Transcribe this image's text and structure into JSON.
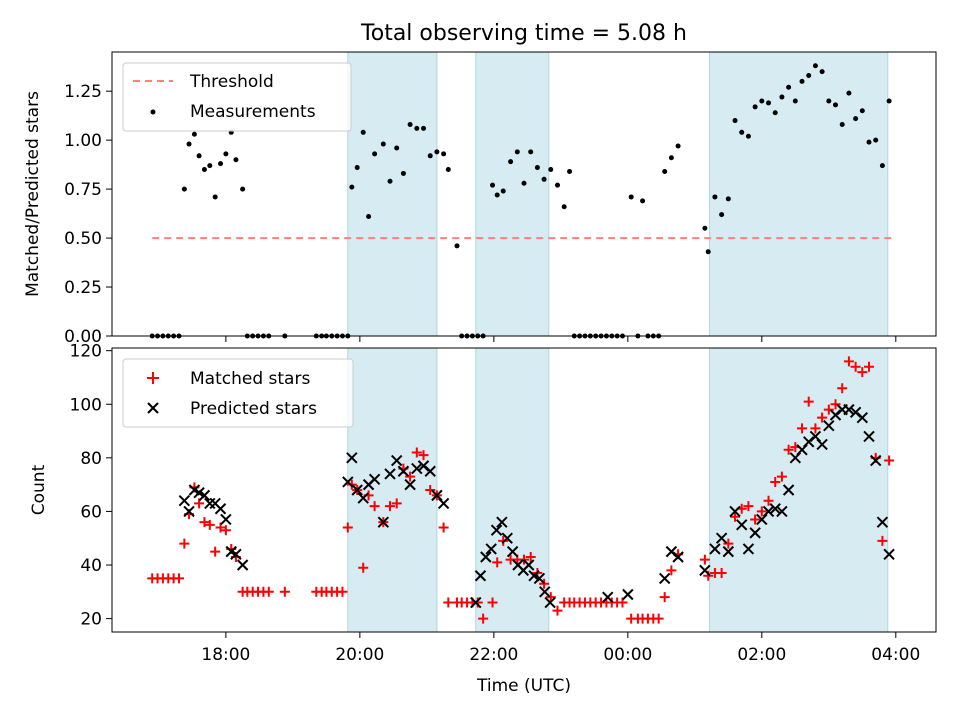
{
  "chart_data": [
    {
      "type": "scatter",
      "title": "Total observing time = 5.08 h",
      "xlabel": "",
      "ylabel": "Matched/Predicted stars",
      "ylim": [
        0,
        1.45
      ],
      "xlim_hours": [
        16.3,
        28.6
      ],
      "ytick_labels": [
        "0.00",
        "0.25",
        "0.50",
        "0.75",
        "1.00",
        "1.25"
      ],
      "ytick_values": [
        0,
        0.25,
        0.5,
        0.75,
        1.0,
        1.25
      ],
      "grid": false,
      "legend": {
        "position": "upper-left",
        "entries": [
          "Threshold",
          "Measurements"
        ]
      },
      "threshold": {
        "name": "Threshold",
        "value": 0.5,
        "x_range": [
          16.9,
          28.0
        ],
        "color": "#ff7f7f"
      },
      "series": [
        {
          "name": "Measurements",
          "color": "#000000",
          "x": [
            16.9,
            16.98,
            17.06,
            17.14,
            17.22,
            17.3,
            17.38,
            17.45,
            17.53,
            17.6,
            17.68,
            17.76,
            17.84,
            17.92,
            18.0,
            18.08,
            18.15,
            18.25,
            18.32,
            18.4,
            18.48,
            18.56,
            18.64,
            18.88,
            19.35,
            19.43,
            19.5,
            19.58,
            19.66,
            19.74,
            19.82,
            19.88,
            19.96,
            20.05,
            20.13,
            20.22,
            20.35,
            20.45,
            20.55,
            20.65,
            20.75,
            20.85,
            20.95,
            21.05,
            21.15,
            21.25,
            21.32,
            21.45,
            21.52,
            21.6,
            21.68,
            21.76,
            21.84,
            21.98,
            22.05,
            22.14,
            22.25,
            22.35,
            22.45,
            22.55,
            22.65,
            22.75,
            22.85,
            22.95,
            23.05,
            23.13,
            23.2,
            23.28,
            23.36,
            23.44,
            23.52,
            23.6,
            23.68,
            23.76,
            23.84,
            23.92,
            24.05,
            24.15,
            24.22,
            24.3,
            24.38,
            24.46,
            24.55,
            24.65,
            24.75,
            25.15,
            25.2,
            25.3,
            25.4,
            25.5,
            25.6,
            25.7,
            25.8,
            25.9,
            26.0,
            26.1,
            26.2,
            26.3,
            26.4,
            26.5,
            26.6,
            26.7,
            26.8,
            26.9,
            27.0,
            27.1,
            27.2,
            27.3,
            27.4,
            27.5,
            27.6,
            27.7,
            27.8,
            27.9
          ],
          "y": [
            0,
            0,
            0,
            0,
            0,
            0,
            0.75,
            0.98,
            1.03,
            0.92,
            0.85,
            0.87,
            0.71,
            0.88,
            0.93,
            1.04,
            0.9,
            0.75,
            0,
            0,
            0,
            0,
            0,
            0,
            0,
            0,
            0,
            0,
            0,
            0,
            0,
            0.76,
            0.86,
            1.04,
            0.61,
            0.93,
            0.98,
            0.79,
            0.96,
            0.83,
            1.08,
            1.06,
            1.06,
            0.92,
            0.94,
            0.93,
            0.85,
            0.46,
            0,
            0,
            0,
            0,
            0,
            0.77,
            0.72,
            0.74,
            0.89,
            0.94,
            0.78,
            0.94,
            0.86,
            0.8,
            0.85,
            0.77,
            0.66,
            0.84,
            0,
            0,
            0,
            0,
            0,
            0,
            0,
            0,
            0,
            0,
            0.71,
            0,
            0.69,
            0,
            0,
            0,
            0.84,
            0.91,
            0.97,
            0.55,
            0.43,
            0.71,
            0.62,
            0.7,
            1.1,
            1.04,
            1.02,
            1.17,
            1.2,
            1.19,
            1.14,
            1.22,
            1.27,
            1.2,
            1.3,
            1.33,
            1.38,
            1.35,
            1.2,
            1.18,
            1.08,
            1.24,
            1.11,
            1.15,
            0.99,
            1.0,
            0.87,
            1.2
          ],
          "x_note": "hours UTC, values above 24 are after midnight"
        }
      ],
      "shaded_spans_hours": [
        [
          19.82,
          21.15
        ],
        [
          21.73,
          22.82
        ],
        [
          25.22,
          27.88
        ]
      ]
    },
    {
      "type": "scatter",
      "title": "",
      "xlabel": "Time (UTC)",
      "ylabel": "Count",
      "ylim": [
        15,
        121
      ],
      "xlim_hours": [
        16.3,
        28.6
      ],
      "xtick_labels": [
        "18:00",
        "20:00",
        "22:00",
        "00:00",
        "02:00",
        "04:00"
      ],
      "xtick_hours": [
        18,
        20,
        22,
        24,
        26,
        28
      ],
      "ytick_labels": [
        "20",
        "40",
        "60",
        "80",
        "100",
        "120"
      ],
      "ytick_values": [
        20,
        40,
        60,
        80,
        100,
        120
      ],
      "grid": false,
      "legend": {
        "position": "upper-left",
        "entries": [
          "Matched stars",
          "Predicted stars"
        ]
      },
      "series": [
        {
          "name": "Matched stars",
          "marker": "+",
          "color": "#ff0000",
          "x": [
            16.9,
            16.98,
            17.06,
            17.14,
            17.22,
            17.3,
            17.38,
            17.45,
            17.53,
            17.6,
            17.68,
            17.76,
            17.84,
            17.92,
            18.0,
            18.08,
            18.15,
            18.25,
            18.32,
            18.4,
            18.48,
            18.56,
            18.64,
            18.88,
            19.35,
            19.43,
            19.5,
            19.58,
            19.66,
            19.74,
            19.82,
            19.88,
            19.96,
            20.05,
            20.13,
            20.22,
            20.35,
            20.45,
            20.55,
            20.65,
            20.75,
            20.85,
            20.95,
            21.05,
            21.15,
            21.25,
            21.32,
            21.45,
            21.52,
            21.6,
            21.68,
            21.76,
            21.84,
            21.98,
            22.05,
            22.14,
            22.25,
            22.35,
            22.45,
            22.55,
            22.65,
            22.75,
            22.85,
            22.95,
            23.05,
            23.13,
            23.2,
            23.28,
            23.36,
            23.44,
            23.52,
            23.6,
            23.68,
            23.76,
            23.84,
            23.92,
            24.05,
            24.15,
            24.22,
            24.3,
            24.38,
            24.46,
            24.55,
            24.65,
            24.75,
            25.15,
            25.2,
            25.3,
            25.4,
            25.5,
            25.6,
            25.7,
            25.8,
            25.9,
            26.0,
            26.1,
            26.2,
            26.3,
            26.4,
            26.5,
            26.6,
            26.7,
            26.8,
            26.9,
            27.0,
            27.1,
            27.2,
            27.3,
            27.4,
            27.5,
            27.6,
            27.7,
            27.8,
            27.9
          ],
          "y": [
            35,
            35,
            35,
            35,
            35,
            35,
            48,
            59,
            69,
            63,
            56,
            55,
            45,
            54,
            53,
            46,
            43,
            30,
            30,
            30,
            30,
            30,
            30,
            30,
            30,
            30,
            30,
            30,
            30,
            30,
            54,
            70,
            68,
            39,
            66,
            62,
            56,
            62,
            63,
            76,
            73,
            82,
            81,
            68,
            66,
            54,
            26,
            26,
            26,
            26,
            26,
            26,
            20,
            26,
            41,
            49,
            42,
            42,
            42,
            43,
            37,
            33,
            28,
            23,
            26,
            26,
            26,
            26,
            26,
            26,
            26,
            26,
            26,
            26,
            26,
            26,
            20,
            20,
            20,
            20,
            20,
            20,
            28,
            38,
            44,
            42,
            36,
            37,
            37,
            48,
            58,
            61,
            62,
            57,
            60,
            64,
            71,
            73,
            83,
            84,
            91,
            101,
            91,
            95,
            98,
            100,
            106,
            116,
            114,
            112,
            114,
            80,
            49,
            79
          ],
          "x_note": "hours UTC, values above 24 are after midnight"
        },
        {
          "name": "Predicted stars",
          "marker": "x",
          "color": "#000000",
          "x": [
            17.38,
            17.45,
            17.53,
            17.6,
            17.68,
            17.76,
            17.84,
            17.92,
            18.0,
            18.08,
            18.15,
            18.25,
            19.82,
            19.88,
            19.96,
            20.05,
            20.13,
            20.22,
            20.35,
            20.45,
            20.55,
            20.65,
            20.75,
            20.85,
            20.95,
            21.05,
            21.15,
            21.25,
            21.73,
            21.8,
            21.88,
            21.96,
            22.04,
            22.12,
            22.2,
            22.28,
            22.36,
            22.44,
            22.52,
            22.6,
            22.68,
            22.76,
            22.84,
            23.7,
            24.0,
            24.55,
            24.65,
            24.75,
            25.15,
            25.3,
            25.4,
            25.5,
            25.6,
            25.7,
            25.8,
            25.9,
            26.0,
            26.1,
            26.2,
            26.3,
            26.4,
            26.5,
            26.6,
            26.7,
            26.8,
            26.9,
            27.0,
            27.1,
            27.2,
            27.3,
            27.4,
            27.5,
            27.6,
            27.7,
            27.8,
            27.9
          ],
          "y": [
            64,
            60,
            68,
            67,
            66,
            63,
            63,
            61,
            57,
            45,
            44,
            40,
            71,
            80,
            68,
            65,
            70,
            72,
            56,
            74,
            79,
            75,
            70,
            76,
            77,
            75,
            66,
            63,
            26,
            36,
            43,
            46,
            53,
            56,
            50,
            45,
            40,
            38,
            40,
            36,
            35,
            30,
            26,
            28,
            29,
            35,
            45,
            43,
            38,
            46,
            50,
            45,
            60,
            55,
            46,
            52,
            57,
            60,
            61,
            60,
            68,
            80,
            83,
            86,
            88,
            85,
            92,
            96,
            98,
            98,
            97,
            95,
            88,
            79,
            56,
            44
          ],
          "x_note": "hours UTC, values above 24 are after midnight"
        }
      ],
      "shaded_spans_hours": [
        [
          19.82,
          21.15
        ],
        [
          21.73,
          22.82
        ],
        [
          25.22,
          27.88
        ]
      ]
    }
  ]
}
